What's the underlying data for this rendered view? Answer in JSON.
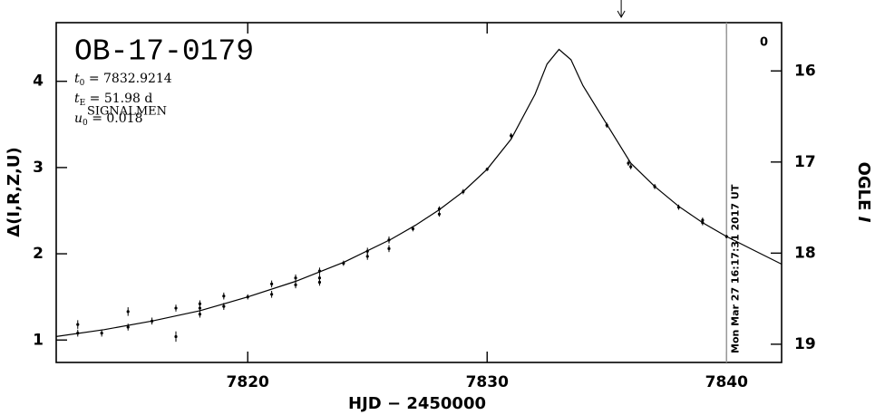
{
  "chart_data": {
    "type": "scatter",
    "title": "OB-17-0179",
    "params": [
      {
        "var": "t",
        "sub": "0",
        "text": " = 7832.9214"
      },
      {
        "var": "t",
        "sub": "E",
        "text": " = 51.98  d"
      },
      {
        "var": "u",
        "sub": "0",
        "text": " = 0.018"
      }
    ],
    "xlabel": "HJD  −  2450000",
    "ylabel": "Δ(I,R,Z,U)",
    "y2label": {
      "text": "OGLE ",
      "italic": "I"
    },
    "signal_label": "SIGNALMEN",
    "corner_label": "0",
    "date_line": {
      "x": 7840,
      "label": "Mon Mar 27 16:17:31 2017 UT",
      "color": "#999999"
    },
    "arrow_x": 7835.6,
    "xlim": [
      7812,
      7842.3
    ],
    "xticks": [
      7820,
      7830,
      7840
    ],
    "ylim": [
      0.74,
      4.68
    ],
    "yticks": [
      1,
      2,
      3,
      4
    ],
    "y2lim": [
      19.2,
      15.47
    ],
    "y2ticks": [
      16,
      17,
      18,
      19
    ],
    "color": "#000000",
    "points": {
      "x": [
        7812.9,
        7812.9,
        7813.9,
        7815.0,
        7815.0,
        7816.0,
        7817.0,
        7817.0,
        7818.0,
        7818.0,
        7818.0,
        7819.0,
        7819.0,
        7820.0,
        7821.0,
        7821.0,
        7822.0,
        7822.0,
        7823.0,
        7823.0,
        7823.0,
        7824.0,
        7825.0,
        7825.0,
        7825.9,
        7825.9,
        7826.9,
        7828.0,
        7828.0,
        7829.0,
        7830.0,
        7831.0,
        7835.0,
        7835.9,
        7836.0,
        7837.0,
        7838.0,
        7839.0,
        7839.0,
        7840.0
      ],
      "y": [
        1.18,
        1.08,
        1.08,
        1.33,
        1.15,
        1.22,
        1.37,
        1.04,
        1.42,
        1.37,
        1.3,
        1.51,
        1.39,
        1.5,
        1.65,
        1.53,
        1.72,
        1.64,
        1.8,
        1.72,
        1.67,
        1.89,
        2.03,
        1.97,
        2.16,
        2.06,
        2.29,
        2.52,
        2.46,
        2.72,
        2.98,
        3.37,
        3.49,
        3.05,
        3.01,
        2.78,
        2.54,
        2.39,
        2.36,
        2.2
      ],
      "err": [
        0.05,
        0.04,
        0.04,
        0.05,
        0.04,
        0.04,
        0.04,
        0.06,
        0.04,
        0.04,
        0.04,
        0.04,
        0.04,
        0.03,
        0.04,
        0.04,
        0.04,
        0.04,
        0.04,
        0.04,
        0.04,
        0.03,
        0.04,
        0.04,
        0.04,
        0.04,
        0.03,
        0.03,
        0.03,
        0.03,
        0.02,
        0.03,
        0.03,
        0.03,
        0.03,
        0.03,
        0.03,
        0.03,
        0.03,
        0.02
      ]
    },
    "model": {
      "x": [
        7812,
        7814,
        7816,
        7818,
        7820,
        7822,
        7824,
        7826,
        7827,
        7828,
        7829,
        7830,
        7831,
        7832,
        7832.5,
        7833,
        7833.5,
        7834,
        7835,
        7836,
        7837,
        7838,
        7839,
        7840,
        7841,
        7842.3
      ],
      "y": [
        1.04,
        1.12,
        1.22,
        1.34,
        1.5,
        1.68,
        1.9,
        2.17,
        2.33,
        2.51,
        2.72,
        2.98,
        3.33,
        3.85,
        4.2,
        4.37,
        4.25,
        3.95,
        3.5,
        3.05,
        2.78,
        2.55,
        2.36,
        2.2,
        2.06,
        1.88
      ]
    }
  }
}
